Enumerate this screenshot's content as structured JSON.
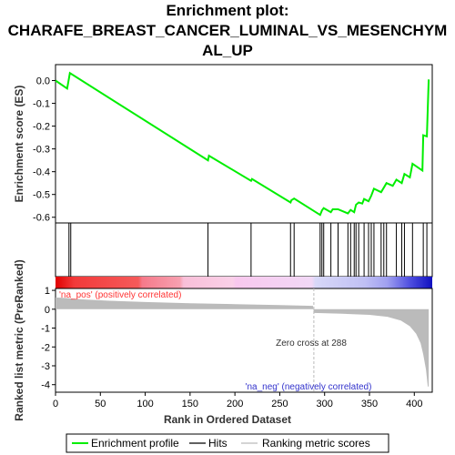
{
  "chart_data": {
    "type": "line",
    "title_lines": [
      "Enrichment plot:",
      "CHARAFE_BREAST_CANCER_LUMINAL_VS_MESENCHYM",
      "AL_UP"
    ],
    "xlabel": "Rank in Ordered Dataset",
    "ylabel_top": "Enrichment score (ES)",
    "ylabel_bottom": "Ranked list metric (PreRanked)",
    "xlim": [
      0,
      420
    ],
    "x_ticks": [
      "0",
      "50",
      "100",
      "150",
      "200",
      "250",
      "300",
      "350",
      "400"
    ],
    "es_ylim": [
      -0.625,
      0.07
    ],
    "es_ticks": [
      "0.0",
      "-0.1",
      "-0.2",
      "-0.3",
      "-0.4",
      "-0.5",
      "-0.6"
    ],
    "metric_ylim": [
      -4.4,
      1.1
    ],
    "metric_ticks": [
      "1",
      "0",
      "-1",
      "-2",
      "-3",
      "-4"
    ],
    "es_curve": [
      [
        0,
        0.0
      ],
      [
        13,
        -0.035
      ],
      [
        16,
        0.033
      ],
      [
        170,
        -0.35
      ],
      [
        171,
        -0.33
      ],
      [
        218,
        -0.44
      ],
      [
        219,
        -0.432
      ],
      [
        262,
        -0.535
      ],
      [
        263,
        -0.525
      ],
      [
        266,
        -0.518
      ],
      [
        295,
        -0.59
      ],
      [
        297,
        -0.57
      ],
      [
        299,
        -0.56
      ],
      [
        307,
        -0.578
      ],
      [
        309,
        -0.565
      ],
      [
        315,
        -0.565
      ],
      [
        326,
        -0.583
      ],
      [
        329,
        -0.568
      ],
      [
        333,
        -0.578
      ],
      [
        335,
        -0.545
      ],
      [
        338,
        -0.535
      ],
      [
        342,
        -0.54
      ],
      [
        344,
        -0.52
      ],
      [
        349,
        -0.53
      ],
      [
        352,
        -0.505
      ],
      [
        355,
        -0.475
      ],
      [
        363,
        -0.49
      ],
      [
        366,
        -0.47
      ],
      [
        369,
        -0.45
      ],
      [
        376,
        -0.462
      ],
      [
        380,
        -0.435
      ],
      [
        386,
        -0.45
      ],
      [
        389,
        -0.41
      ],
      [
        395,
        -0.425
      ],
      [
        398,
        -0.365
      ],
      [
        409,
        -0.395
      ],
      [
        410,
        -0.24
      ],
      [
        414,
        -0.245
      ],
      [
        416,
        0.005
      ]
    ],
    "hits": [
      15,
      17,
      170,
      218,
      262,
      266,
      295,
      297,
      299,
      307,
      315,
      326,
      329,
      333,
      335,
      338,
      344,
      349,
      352,
      355,
      363,
      366,
      369,
      380,
      386,
      389,
      398,
      410,
      414
    ],
    "metric_profile": [
      [
        0,
        0.62
      ],
      [
        10,
        0.6
      ],
      [
        30,
        0.52
      ],
      [
        60,
        0.45
      ],
      [
        100,
        0.38
      ],
      [
        150,
        0.32
      ],
      [
        200,
        0.27
      ],
      [
        250,
        0.22
      ],
      [
        287,
        0.18
      ],
      [
        288,
        -0.2
      ],
      [
        320,
        -0.24
      ],
      [
        350,
        -0.3
      ],
      [
        370,
        -0.4
      ],
      [
        385,
        -0.6
      ],
      [
        395,
        -0.9
      ],
      [
        402,
        -1.3
      ],
      [
        407,
        -1.8
      ],
      [
        410,
        -2.4
      ],
      [
        413,
        -3.2
      ],
      [
        415,
        -4.1
      ],
      [
        416,
        -4.1
      ]
    ],
    "zero_cross": 288,
    "zero_cross_label": "Zero cross at 288",
    "pos_label": "'na_pos' (positively correlated)",
    "neg_label": "'na_neg' (negatively correlated)",
    "legend": [
      "Enrichment profile",
      "Hits",
      "Ranking metric scores"
    ],
    "colors": {
      "es_line": "#00ee00",
      "hits": "#000000",
      "metric_fill": "#bbbbbb",
      "pos_text": "#ff3333",
      "neg_text": "#3333cc",
      "zero_line": "#bbbbbb"
    },
    "grid": false
  }
}
